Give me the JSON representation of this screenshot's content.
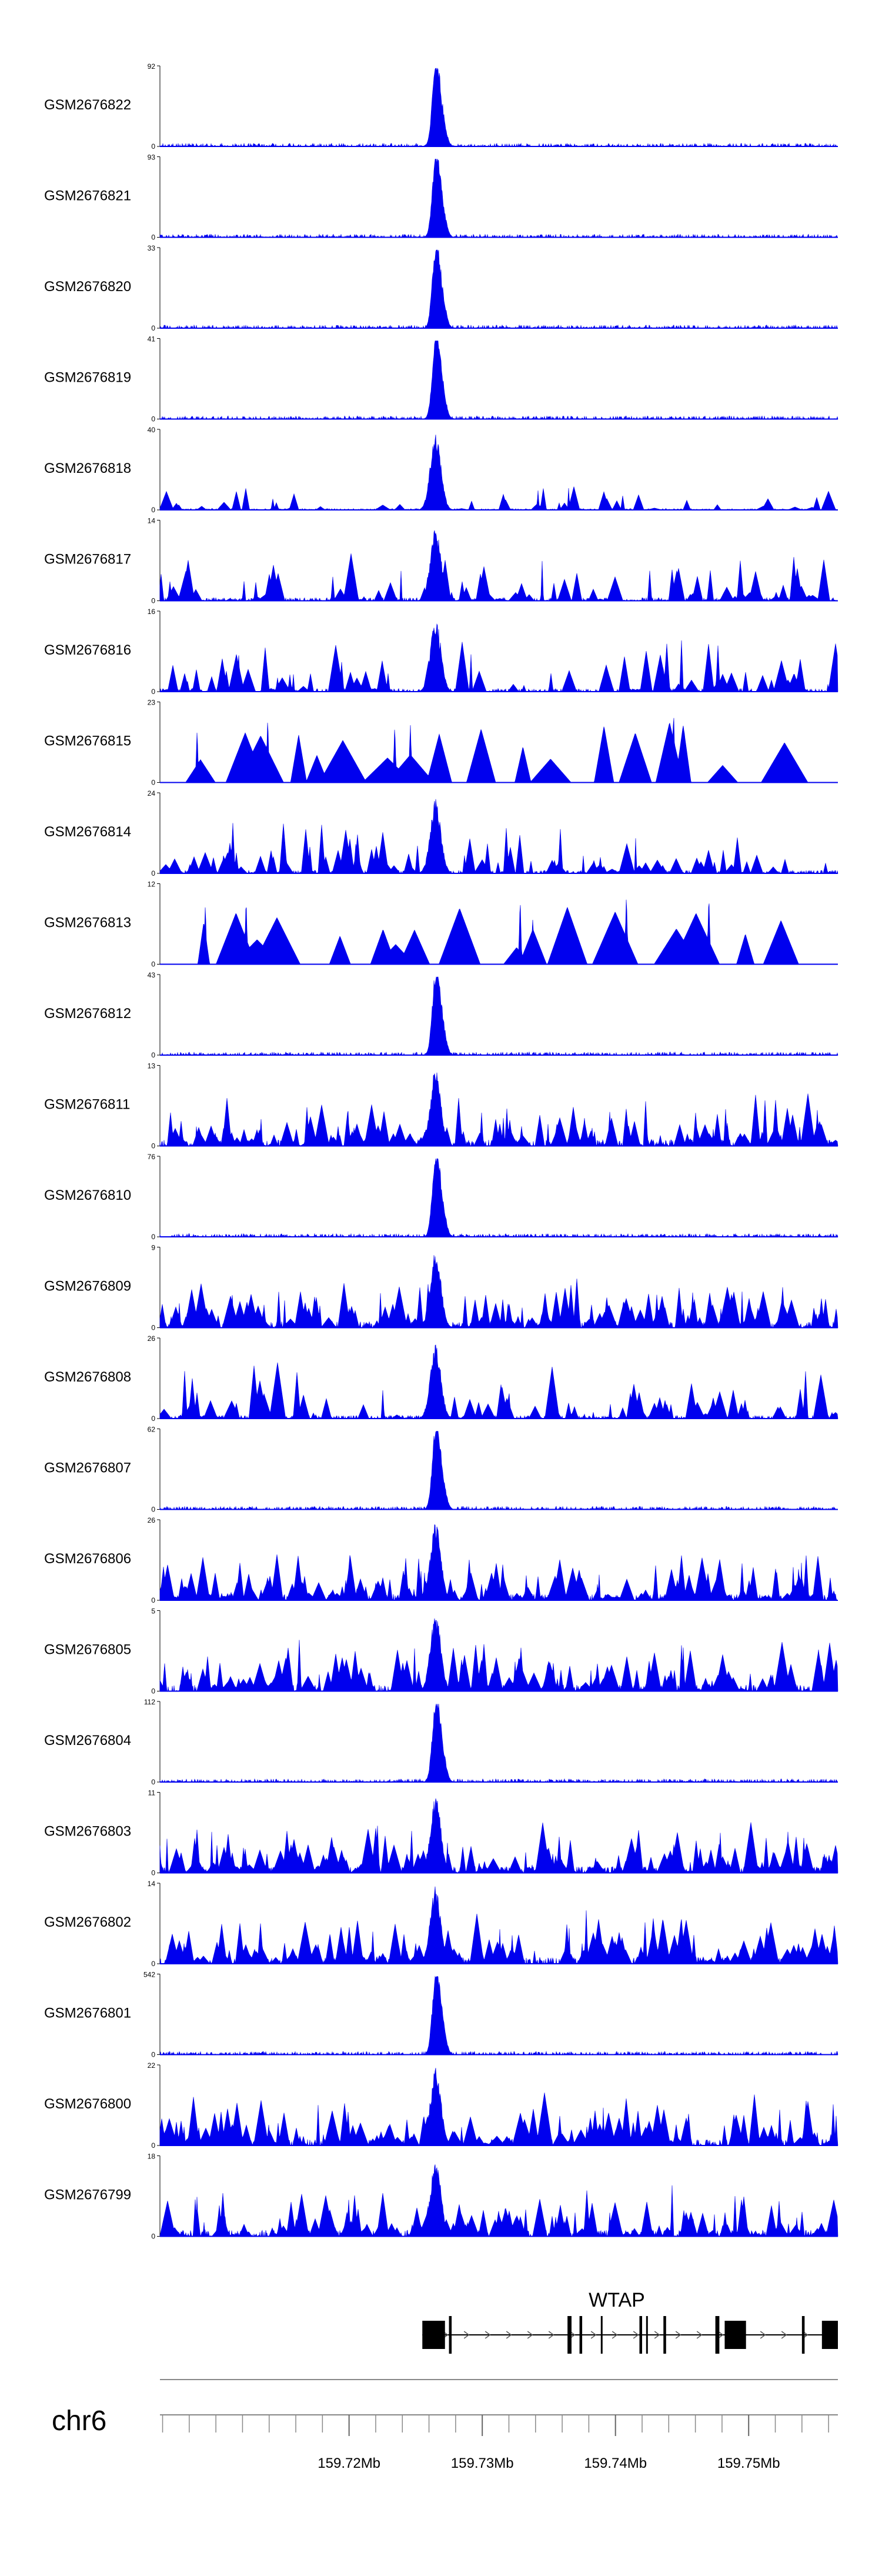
{
  "chart_data": {
    "type": "area",
    "chromosome": "chr6",
    "xlim": [
      159.7058,
      159.7567
    ],
    "x_unit": "Mb",
    "peak_center": 159.7265,
    "color": "#0000ee",
    "tracks": [
      {
        "name": "GSM2676822",
        "ymax": "92",
        "ymin": "0",
        "profile": "sharp"
      },
      {
        "name": "GSM2676821",
        "ymax": "93",
        "ymin": "0",
        "profile": "sharp"
      },
      {
        "name": "GSM2676820",
        "ymax": "33",
        "ymin": "0",
        "profile": "sharp"
      },
      {
        "name": "GSM2676819",
        "ymax": "41",
        "ymin": "0",
        "profile": "sharp"
      },
      {
        "name": "GSM2676818",
        "ymax": "40",
        "ymin": "0",
        "profile": "sparse"
      },
      {
        "name": "GSM2676817",
        "ymax": "14",
        "ymin": "0",
        "profile": "spiky"
      },
      {
        "name": "GSM2676816",
        "ymax": "16",
        "ymin": "0",
        "profile": "spiky"
      },
      {
        "name": "GSM2676815",
        "ymax": "23",
        "ymin": "0",
        "profile": "triangle"
      },
      {
        "name": "GSM2676814",
        "ymax": "24",
        "ymin": "0",
        "profile": "spiky"
      },
      {
        "name": "GSM2676813",
        "ymax": "12",
        "ymin": "0",
        "profile": "triangle"
      },
      {
        "name": "GSM2676812",
        "ymax": "43",
        "ymin": "0",
        "profile": "sharp"
      },
      {
        "name": "GSM2676811",
        "ymax": "13",
        "ymin": "0",
        "profile": "dense"
      },
      {
        "name": "GSM2676810",
        "ymax": "76",
        "ymin": "0",
        "profile": "sharp"
      },
      {
        "name": "GSM2676809",
        "ymax": "9",
        "ymin": "0",
        "profile": "dense"
      },
      {
        "name": "GSM2676808",
        "ymax": "26",
        "ymin": "0",
        "profile": "spiky"
      },
      {
        "name": "GSM2676807",
        "ymax": "62",
        "ymin": "0",
        "profile": "sharp"
      },
      {
        "name": "GSM2676806",
        "ymax": "26",
        "ymin": "0",
        "profile": "dense"
      },
      {
        "name": "GSM2676805",
        "ymax": "5",
        "ymin": "0",
        "profile": "dense"
      },
      {
        "name": "GSM2676804",
        "ymax": "112",
        "ymin": "0",
        "profile": "sharp"
      },
      {
        "name": "GSM2676803",
        "ymax": "11",
        "ymin": "0",
        "profile": "dense"
      },
      {
        "name": "GSM2676802",
        "ymax": "14",
        "ymin": "0",
        "profile": "dense"
      },
      {
        "name": "GSM2676801",
        "ymax": "542",
        "ymin": "0",
        "profile": "sharp"
      },
      {
        "name": "GSM2676800",
        "ymax": "22",
        "ymin": "0",
        "profile": "dense"
      },
      {
        "name": "GSM2676799",
        "ymax": "18",
        "ymin": "0",
        "profile": "dense"
      }
    ],
    "gene": {
      "name": "WTAP",
      "strand": "+",
      "start": 159.7255,
      "end": 159.7567,
      "exons": [
        [
          159.7255,
          159.7272
        ],
        [
          159.7275,
          159.7277
        ],
        [
          159.7364,
          159.7367
        ],
        [
          159.7373,
          159.7375
        ],
        [
          159.7389,
          159.739
        ],
        [
          159.7418,
          159.742
        ],
        [
          159.7423,
          159.7424
        ],
        [
          159.7436,
          159.7438
        ],
        [
          159.7475,
          159.7478
        ],
        [
          159.7482,
          159.7498
        ],
        [
          159.754,
          159.7542
        ],
        [
          159.7555,
          159.7567
        ]
      ]
    },
    "axis_ticks": [
      159.72,
      159.73,
      159.74,
      159.75
    ],
    "axis_tick_labels": [
      "159.72Mb",
      "159.73Mb",
      "159.74Mb",
      "159.75Mb"
    ],
    "minor_tick_step": 0.002
  }
}
